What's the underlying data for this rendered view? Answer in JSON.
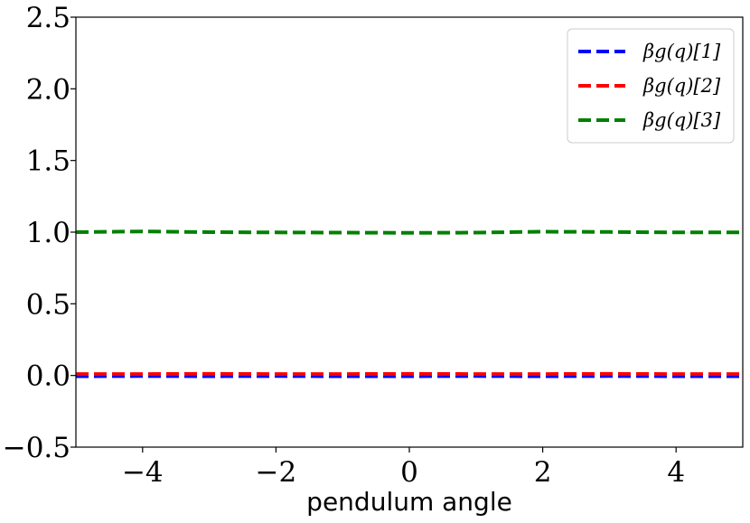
{
  "chart_data": {
    "type": "line",
    "title": "",
    "xlabel": "pendulum angle",
    "ylabel": "",
    "xlim": [
      -5,
      5
    ],
    "ylim": [
      -0.5,
      2.5
    ],
    "xticks": [
      -4,
      -2,
      0,
      2,
      4
    ],
    "xtick_labels": [
      "−4",
      "−2",
      "0",
      "2",
      "4"
    ],
    "yticks": [
      -0.5,
      0.0,
      0.5,
      1.0,
      1.5,
      2.0,
      2.5
    ],
    "ytick_labels": [
      "−0.5",
      "0.0",
      "0.5",
      "1.0",
      "1.5",
      "2.0",
      "2.5"
    ],
    "grid": false,
    "legend_position": "top-right",
    "series": [
      {
        "name": "βg(q)[1]",
        "color": "#0000ff",
        "style": "dashed",
        "x": [
          -5,
          -4,
          -3,
          -2,
          -1,
          0,
          1,
          2,
          3,
          4,
          5
        ],
        "y": [
          -0.005,
          -0.004,
          -0.005,
          -0.004,
          -0.005,
          -0.005,
          -0.004,
          -0.005,
          -0.004,
          -0.005,
          -0.005
        ]
      },
      {
        "name": "βg(q)[2]",
        "color": "#ff0000",
        "style": "dashed",
        "x": [
          -5,
          -4,
          -3,
          -2,
          -1,
          0,
          1,
          2,
          3,
          4,
          5
        ],
        "y": [
          0.01,
          0.01,
          0.011,
          0.01,
          0.01,
          0.011,
          0.01,
          0.01,
          0.011,
          0.01,
          0.01
        ]
      },
      {
        "name": "βg(q)[3]",
        "color": "#008000",
        "style": "dashed",
        "x": [
          -5,
          -4,
          -3,
          -2,
          -1,
          0,
          1,
          2,
          3,
          4,
          5
        ],
        "y": [
          1.0,
          1.005,
          1.0,
          0.998,
          0.997,
          0.995,
          0.997,
          1.003,
          1.001,
          0.998,
          0.999
        ]
      }
    ]
  }
}
